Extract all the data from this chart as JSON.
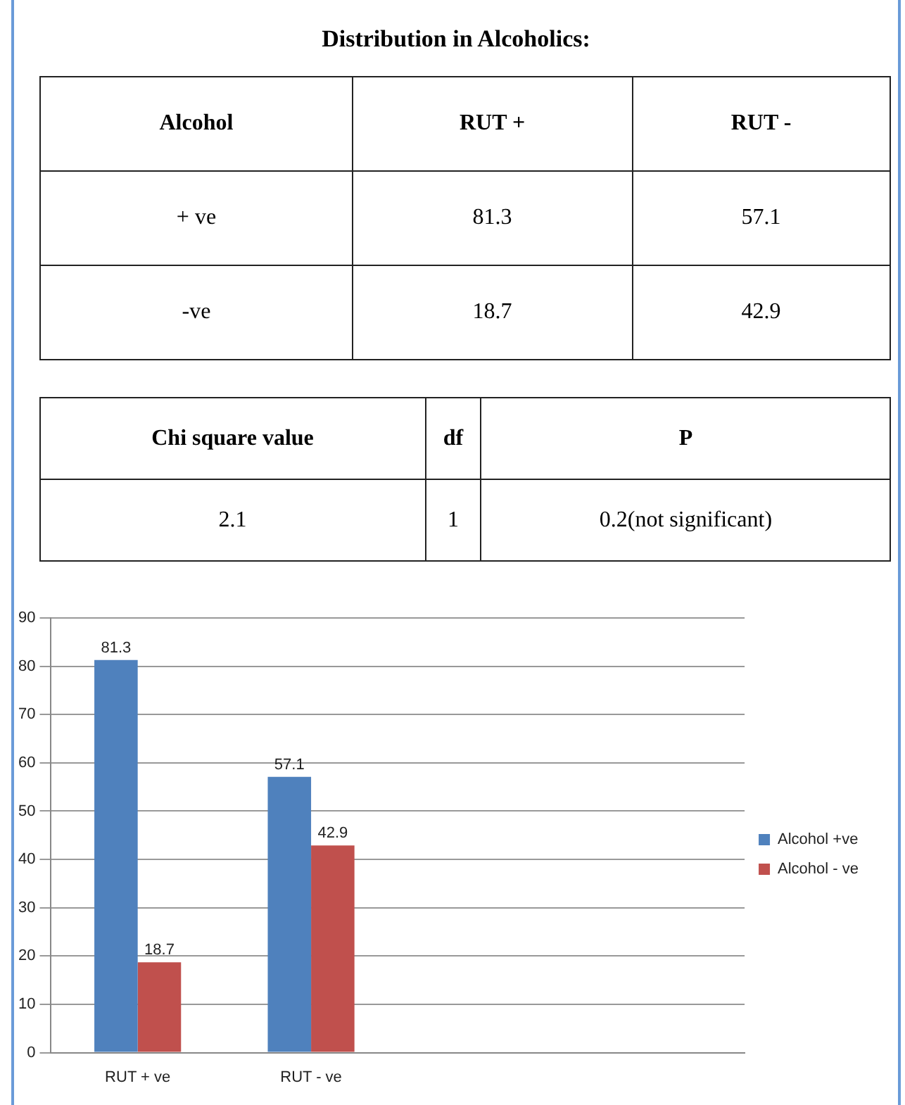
{
  "chart_data": [
    {
      "type": "other",
      "title": "Distribution in  Alcoholics:",
      "annotations": [
        "Alcohol",
        "RUT +",
        "RUT -",
        "+ ve",
        "81.3",
        "57.1",
        "-ve",
        "18.7",
        "42.9"
      ]
    },
    {
      "type": "other",
      "annotations": [
        "Chi square value",
        "df",
        "P",
        "2.1",
        "1",
        "0.2(not significant)"
      ]
    },
    {
      "type": "bar",
      "categories": [
        "RUT + ve",
        "RUT - ve",
        null,
        null
      ],
      "series": [
        {
          "name": "Alcohol +ve",
          "color": "#4f81bd",
          "values": [
            81.3,
            57.1,
            null,
            null
          ]
        },
        {
          "name": "Alcohol - ve",
          "color": "#c0504d",
          "values": [
            18.7,
            42.9,
            null,
            null
          ]
        }
      ],
      "ylim": [
        0,
        90
      ],
      "yticks": [
        0,
        10,
        20,
        30,
        40,
        50,
        60,
        70,
        80,
        90
      ],
      "grid": "y",
      "legend": "right",
      "data_labels": true
    }
  ]
}
